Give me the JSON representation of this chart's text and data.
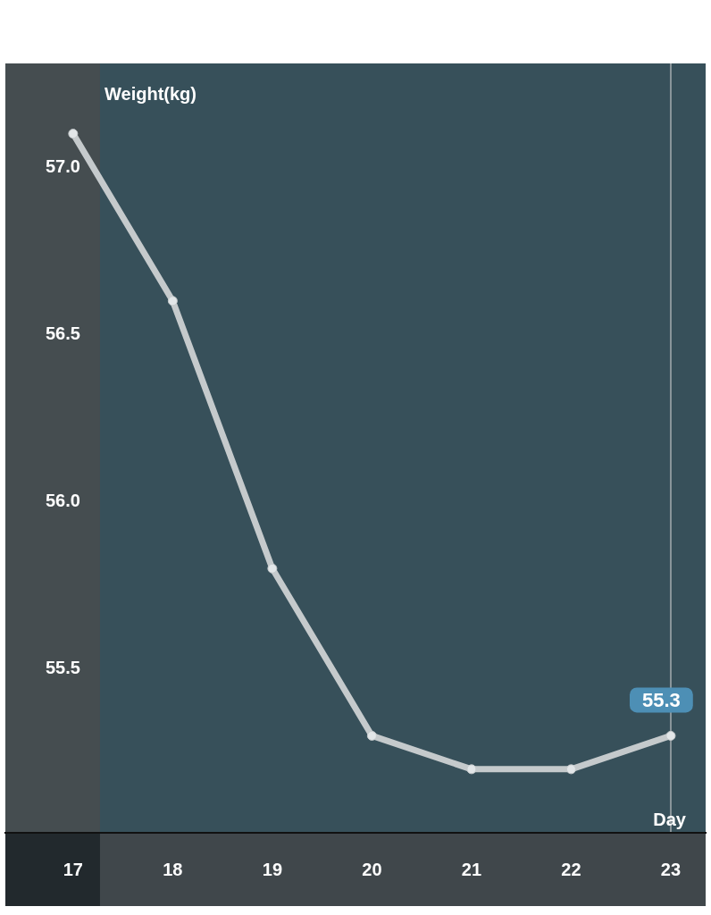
{
  "chart_data": {
    "type": "line",
    "xlabel": "Day",
    "ylabel": "Weight(kg)",
    "x": [
      17,
      18,
      19,
      20,
      21,
      22,
      23
    ],
    "values": [
      57.1,
      56.6,
      55.8,
      55.3,
      55.2,
      55.2,
      55.3
    ],
    "color": "#c5cacc",
    "marker": "circle",
    "xlim": [
      16.32,
      23.35
    ],
    "xticks": [
      17,
      18,
      19,
      20,
      21,
      22,
      23
    ],
    "ylim": [
      55.01,
      57.31
    ],
    "yticks": [
      {
        "value": 55.5,
        "label": "55.5"
      },
      {
        "value": 56,
        "label": "56.0"
      },
      {
        "value": 56.5,
        "label": "56.5"
      },
      {
        "value": 57,
        "label": "57.0"
      }
    ],
    "bands": [
      {
        "axis": "x",
        "from": 16.32,
        "to": 17.27,
        "color": "#454d50"
      }
    ],
    "ref_lines": [
      {
        "axis": "x",
        "value": 23,
        "color": "#8a969b"
      }
    ],
    "annotations": [
      {
        "text": "55.3",
        "x": 23,
        "y": 55.3
      }
    ]
  }
}
